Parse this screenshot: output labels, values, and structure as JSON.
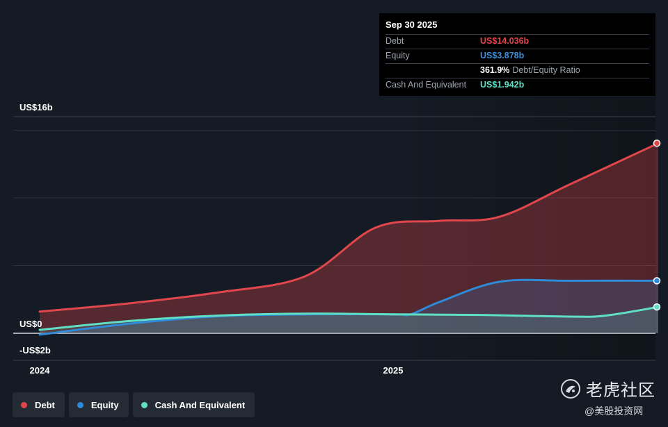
{
  "chart_data": {
    "type": "area",
    "title": "",
    "xlabel": "",
    "ylabel": "",
    "ylim": [
      -2,
      16
    ],
    "y_ticks": [
      {
        "value": 16,
        "label": "US$16b"
      },
      {
        "value": 0,
        "label": "US$0"
      },
      {
        "value": -2,
        "label": "-US$2b"
      }
    ],
    "gridlines": [
      15,
      10,
      5
    ],
    "x_range": [
      2024.0,
      2025.75
    ],
    "x_ticks": [
      {
        "value": 2024.0,
        "label": "2024"
      },
      {
        "value": 2025.0,
        "label": "2025"
      }
    ],
    "series": [
      {
        "name": "Debt",
        "color": "#e0474c",
        "x": [
          2024.0,
          2024.25,
          2024.5,
          2024.75,
          2024.95,
          2025.13,
          2025.3,
          2025.5,
          2025.75
        ],
        "values": [
          1.6,
          2.2,
          3.0,
          4.2,
          7.8,
          8.3,
          8.6,
          11.0,
          14.036
        ]
      },
      {
        "name": "Equity",
        "color": "#2f8ad8",
        "x": [
          2024.0,
          2024.25,
          2024.5,
          2024.75,
          2025.0,
          2025.05,
          2025.13,
          2025.3,
          2025.5,
          2025.75
        ],
        "values": [
          -0.1,
          0.7,
          1.25,
          1.4,
          1.4,
          1.4,
          2.3,
          3.8,
          3.88,
          3.878
        ]
      },
      {
        "name": "Cash And Equivalent",
        "color": "#5fe0c6",
        "x": [
          2024.0,
          2024.25,
          2024.5,
          2024.75,
          2025.0,
          2025.25,
          2025.5,
          2025.6,
          2025.75
        ],
        "values": [
          0.25,
          0.9,
          1.3,
          1.45,
          1.4,
          1.35,
          1.23,
          1.3,
          1.942
        ]
      }
    ],
    "legend_position": "bottom-left",
    "grid": true
  },
  "tooltip": {
    "date": "Sep 30 2025",
    "rows": [
      {
        "label": "Debt",
        "value": "US$14.036b",
        "color": "#e0474c"
      },
      {
        "label": "Equity",
        "value": "US$3.878b",
        "color": "#3d8fdb"
      }
    ],
    "ratio_value": "361.9%",
    "ratio_label": "Debt/Equity Ratio",
    "cash_label": "Cash And Equivalent",
    "cash_value": "US$1.942b",
    "cash_color": "#5fe0c6"
  },
  "legend": [
    {
      "label": "Debt",
      "color": "#e0474c"
    },
    {
      "label": "Equity",
      "color": "#2f8ad8"
    },
    {
      "label": "Cash And Equivalent",
      "color": "#5fe0c6"
    }
  ],
  "watermark": {
    "main": "老虎社区",
    "sub": "@美股投资网"
  }
}
